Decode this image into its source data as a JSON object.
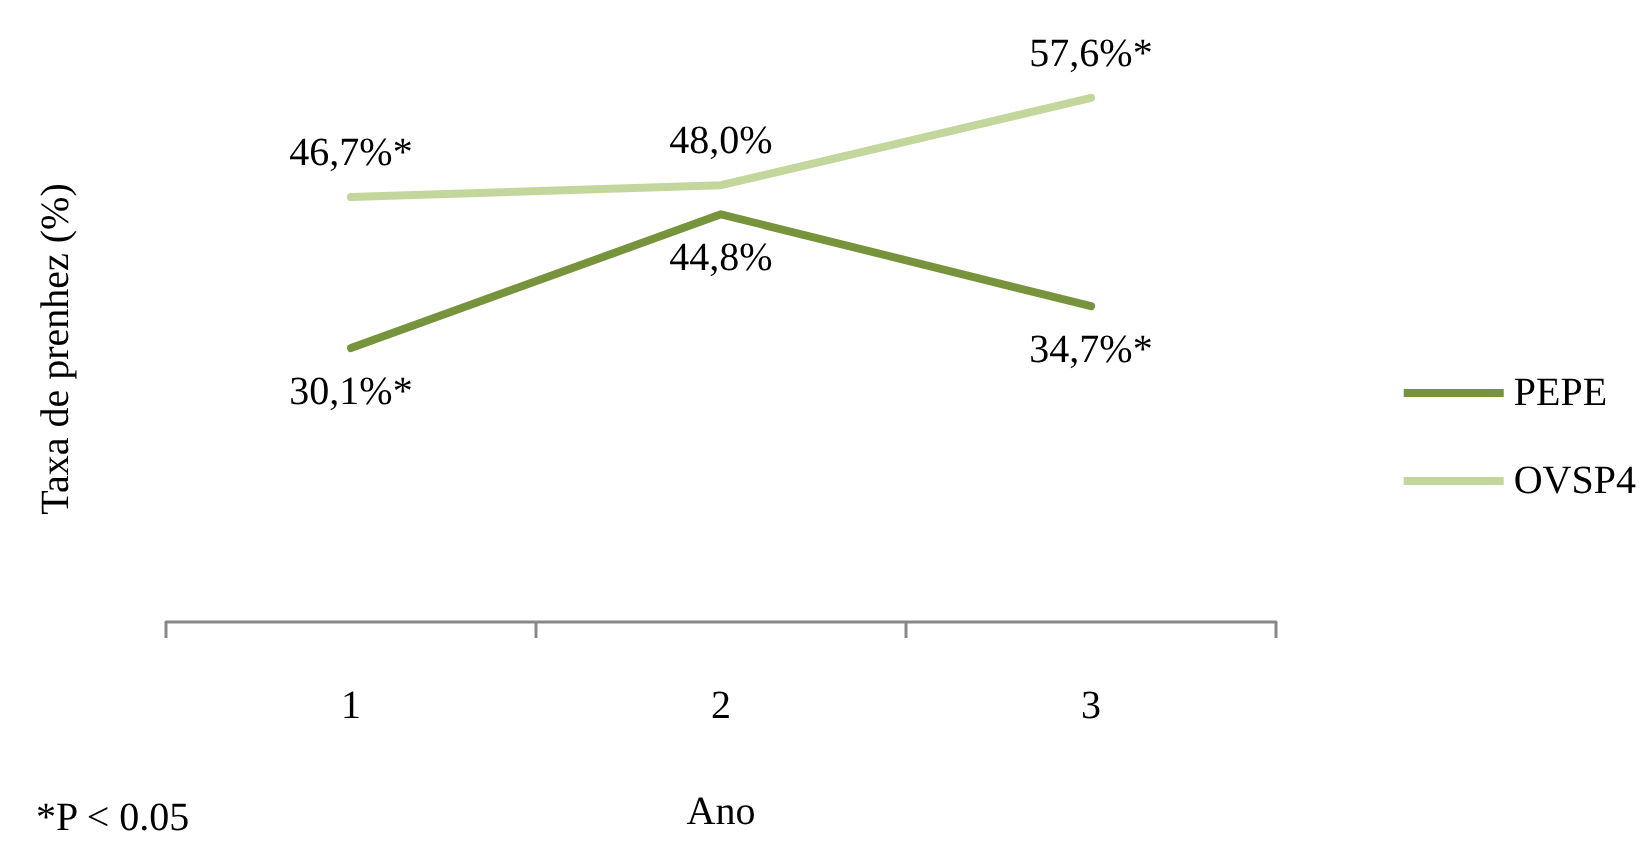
{
  "chart_data": {
    "type": "line",
    "xlabel": "Ano",
    "ylabel": "Taxa de prenhez (%)",
    "categories": [
      "1",
      "2",
      "3"
    ],
    "series": [
      {
        "name": "PEPE",
        "color": "#77933c",
        "values": [
          30.1,
          44.8,
          34.7
        ],
        "value_labels": [
          "30,1%*",
          "44,8%",
          "34,7%*"
        ]
      },
      {
        "name": "OVSP4",
        "color": "#c3d69b",
        "values": [
          46.7,
          48.0,
          57.6
        ],
        "value_labels": [
          "46,7%*",
          "48,0%",
          "57,6%*"
        ]
      }
    ],
    "legend": "right",
    "marker": "none",
    "line_style": "solid",
    "grid": false,
    "tick_labels": "x",
    "annotations": [
      "*P < 0.05"
    ]
  }
}
